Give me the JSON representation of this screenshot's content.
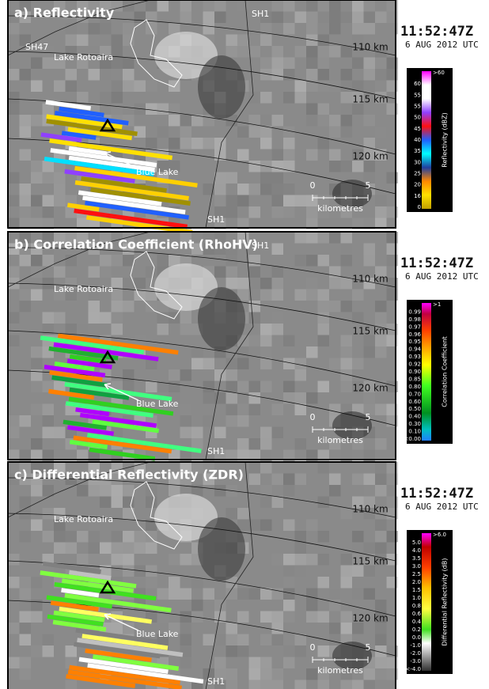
{
  "panels": [
    {
      "title": "a) Reflectivity",
      "road_top": "SH1",
      "road_left": "SH47",
      "road_bottom": "SH1",
      "lake": "Lake Rotoaira",
      "blue_lake": "Blue Lake",
      "ranges": [
        "110 km",
        "115 km",
        "120 km"
      ],
      "scale": [
        "0",
        "5",
        "kilometres"
      ],
      "time": "11:52:47Z",
      "date": "6 AUG 2012 UTC",
      "colorbar_title": "Reflectivity (dBZ)",
      "colorbar_labels": [
        ">60",
        "60",
        "55",
        "55",
        "50",
        "45",
        "40",
        "35",
        "30",
        "25",
        "20",
        "16",
        "0"
      ]
    },
    {
      "title": "b) Correlation Coefficient (RhoHV)",
      "road_top": "SH1",
      "road_bottom": "SH1",
      "lake": "Lake Rotoaira",
      "blue_lake": "Blue Lake",
      "ranges": [
        "110 km",
        "115 km",
        "120 km"
      ],
      "scale": [
        "0",
        "5",
        "kilometres"
      ],
      "time": "11:52:47Z",
      "date": "6 AUG 2012 UTC",
      "colorbar_title": "Correlation Coefficient",
      "colorbar_labels": [
        ">1",
        "0.99",
        "0.98",
        "0.97",
        "0.96",
        "0.95",
        "0.94",
        "0.93",
        "0.92",
        "0.90",
        "0.85",
        "0.80",
        "0.70",
        "0.60",
        "0.50",
        "0.40",
        "0.30",
        "0.10",
        "<0.00"
      ]
    },
    {
      "title": "c) Differential Reflectivity (ZDR)",
      "road_bottom": "SH1",
      "lake": "Lake Rotoaira",
      "blue_lake": "Blue Lake",
      "ranges": [
        "110 km",
        "115 km",
        "120 km"
      ],
      "scale": [
        "0",
        "5",
        "kilometres"
      ],
      "time": "11:52:47Z",
      "date": "6 AUG 2012 UTC",
      "colorbar_title": "Differential Reflectivity (dB)",
      "colorbar_labels": [
        ">6.0",
        "5.0",
        "4.0",
        "3.5",
        "3.0",
        "2.5",
        "2.0",
        "1.5",
        "1.0",
        "0.8",
        "0.6",
        "0.4",
        "0.2",
        "0.0",
        "-1.0",
        "-2.0",
        "-3.0",
        "<-4.0"
      ]
    }
  ]
}
